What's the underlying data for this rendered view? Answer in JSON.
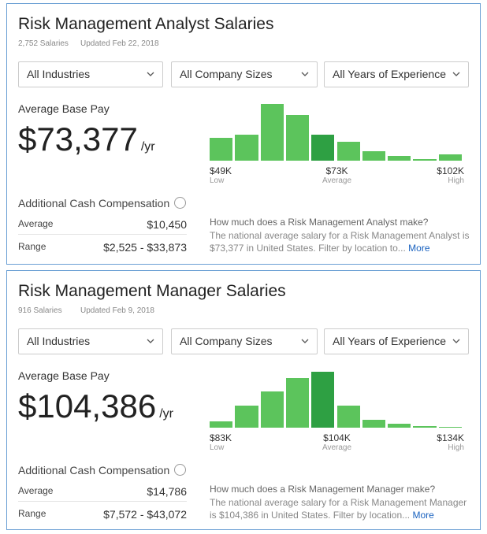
{
  "cards": [
    {
      "title": "Risk Management Analyst Salaries",
      "salaries": "2,752 Salaries",
      "updated": "Updated Feb 22, 2018",
      "filters": [
        "All Industries",
        "All Company Sizes",
        "All Years of Experience"
      ],
      "pay_label": "Average Base Pay",
      "amount": "$73,377",
      "unit": "/yr",
      "histogram": {
        "type": "bar",
        "values": [
          29,
          33,
          72,
          58,
          33,
          24,
          12,
          6,
          2,
          8
        ],
        "highlight_index": 4,
        "color": "#5cc45c",
        "highlight_color": "#2ea043",
        "low": {
          "value": "$49K",
          "label": "Low"
        },
        "average": {
          "value": "$73K",
          "label": "Average"
        },
        "high": {
          "value": "$102K",
          "label": "High"
        }
      },
      "additional": {
        "title": "Additional Cash Compensation",
        "rows": [
          [
            "Average",
            "$10,450"
          ],
          [
            "Range",
            "$2,525 - $33,873"
          ]
        ]
      },
      "question": "How much does a Risk Management Analyst make?",
      "description": "The national average salary for a Risk Management Analyst is $73,377 in United States. Filter by location to...",
      "more": "More"
    },
    {
      "title": "Risk Management Manager Salaries",
      "salaries": "916 Salaries",
      "updated": "Updated Feb 9, 2018",
      "filters": [
        "All Industries",
        "All Company Sizes",
        "All Years of Experience"
      ],
      "pay_label": "Average Base Pay",
      "amount": "$104,386",
      "unit": "/yr",
      "histogram": {
        "type": "bar",
        "values": [
          8,
          28,
          46,
          63,
          71,
          28,
          10,
          5,
          2,
          1
        ],
        "highlight_index": 4,
        "color": "#5cc45c",
        "highlight_color": "#2ea043",
        "low": {
          "value": "$83K",
          "label": "Low"
        },
        "average": {
          "value": "$104K",
          "label": "Average"
        },
        "high": {
          "value": "$134K",
          "label": "High"
        }
      },
      "additional": {
        "title": "Additional Cash Compensation",
        "rows": [
          [
            "Average",
            "$14,786"
          ],
          [
            "Range",
            "$7,572 - $43,072"
          ]
        ]
      },
      "question": "How much does a Risk Management Manager make?",
      "description": "The national average salary for a Risk Management Manager is $104,386 in United States. Filter by location...",
      "more": "More"
    }
  ]
}
